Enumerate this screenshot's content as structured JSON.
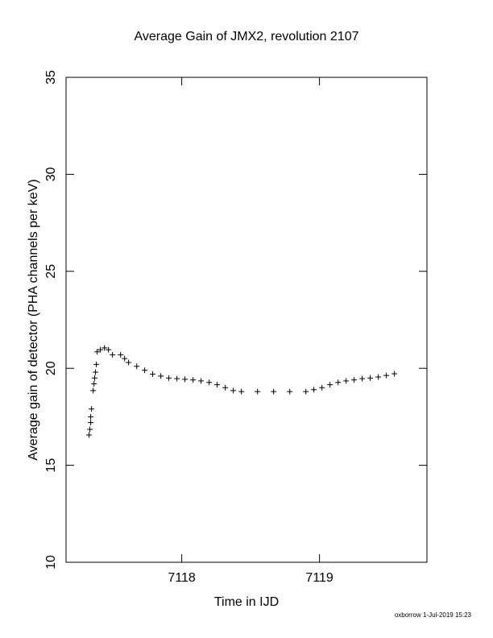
{
  "chart_data": {
    "type": "scatter",
    "title": "Average Gain of JMX2, revolution 2107",
    "x_label": "Time in IJD",
    "y_label": "Average gain of detector (PHA channels per keV)",
    "footer": "oxborrow  1-Jul-2019 15:23",
    "marker": "plus",
    "color": "#000000",
    "xlim": [
      7117.16,
      7119.78
    ],
    "ylim": [
      10,
      35
    ],
    "xticks": [
      7118,
      7119
    ],
    "yticks": [
      10,
      15,
      20,
      25,
      30,
      35
    ],
    "x": [
      7117.327,
      7117.333,
      7117.339,
      7117.339,
      7117.345,
      7117.357,
      7117.363,
      7117.368,
      7117.374,
      7117.38,
      7117.386,
      7117.409,
      7117.439,
      7117.468,
      7117.497,
      7117.556,
      7117.585,
      7117.614,
      7117.673,
      7117.731,
      7117.789,
      7117.848,
      7117.906,
      7117.965,
      7118.023,
      7118.082,
      7118.14,
      7118.199,
      7118.257,
      7118.316,
      7118.374,
      7118.433,
      7118.55,
      7118.667,
      7118.784,
      7118.901,
      7118.959,
      7119.018,
      7119.076,
      7119.135,
      7119.193,
      7119.251,
      7119.31,
      7119.368,
      7119.427,
      7119.485,
      7119.544
    ],
    "values": [
      16.56,
      16.85,
      17.2,
      17.5,
      17.9,
      18.85,
      19.2,
      19.5,
      19.8,
      20.2,
      20.85,
      20.96,
      21.05,
      20.96,
      20.7,
      20.7,
      20.5,
      20.3,
      20.1,
      19.9,
      19.7,
      19.6,
      19.5,
      19.47,
      19.43,
      19.4,
      19.35,
      19.27,
      19.15,
      19.0,
      18.85,
      18.8,
      18.8,
      18.8,
      18.8,
      18.8,
      18.9,
      19.0,
      19.15,
      19.27,
      19.35,
      19.4,
      19.47,
      19.5,
      19.55,
      19.63,
      19.72
    ]
  }
}
